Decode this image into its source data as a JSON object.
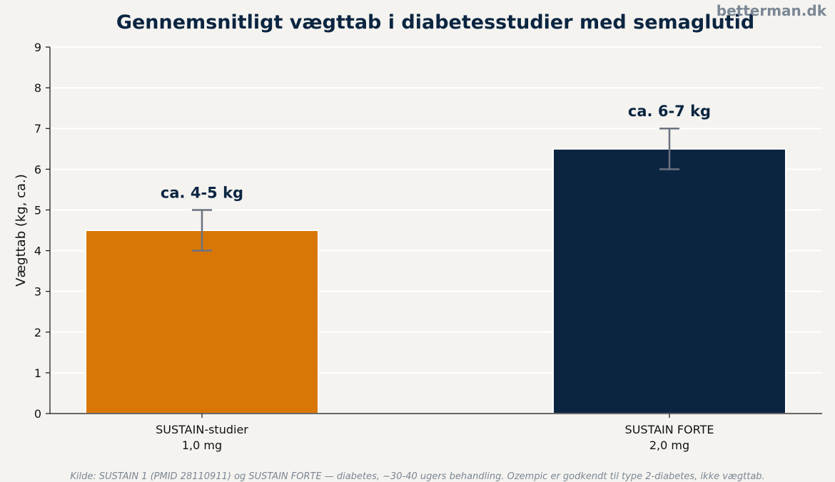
{
  "watermark": "betterman.dk",
  "source_note": "Kilde: SUSTAIN 1 (PMID 28110911) og SUSTAIN FORTE — diabetes, ~30-40 ugers behandling. Ozempic er godkendt til type 2-diabetes, ikke vægttab.",
  "chart_data": {
    "type": "bar",
    "title": "Gennemsnitligt vægttab i diabetesstudier med semaglutid",
    "xlabel": "",
    "ylabel": "Vægttab (kg, ca.)",
    "ylim": [
      0,
      9
    ],
    "yticks": [
      0,
      1,
      2,
      3,
      4,
      5,
      6,
      7,
      8,
      9
    ],
    "grid": "horizontal",
    "categories": [
      [
        "SUSTAIN-studier",
        "1,0 mg"
      ],
      [
        "SUSTAIN FORTE",
        "2,0 mg"
      ]
    ],
    "values": [
      4.5,
      6.5
    ],
    "error_ranges": [
      [
        4,
        5
      ],
      [
        6,
        7
      ]
    ],
    "data_labels": [
      "ca. 4-5 kg",
      "ca. 6-7 kg"
    ],
    "colors": [
      "#d97706",
      "#0b2541"
    ],
    "error_color": "#6b7280"
  }
}
